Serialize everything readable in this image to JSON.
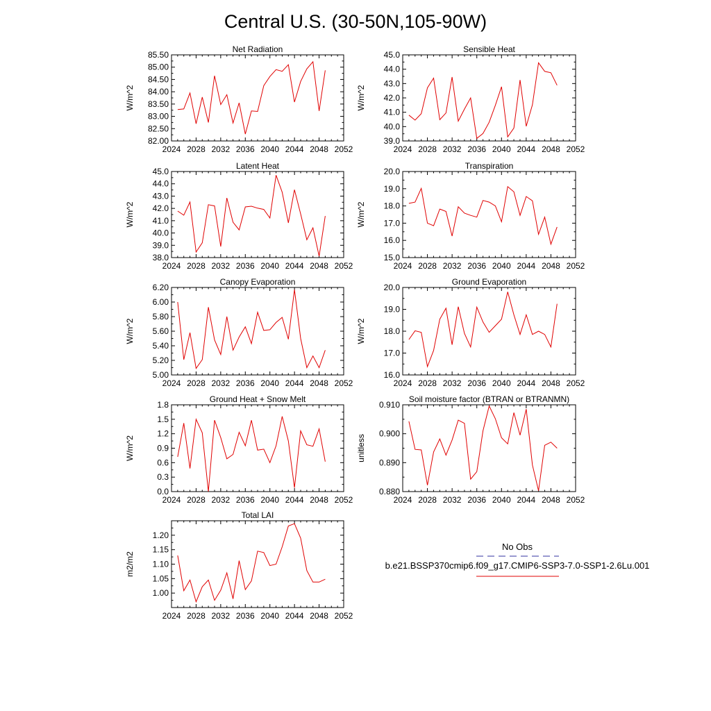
{
  "title": "Central U.S. (30-50N,105-90W)",
  "colors": {
    "model": "#e00000",
    "obs": "#3030a0",
    "frame": "#000000"
  },
  "legend": {
    "obs_label": "No Obs",
    "model_label": "b.e21.BSSP370cmip6.f09_g17.CMIP6-SSP3-7.0-SSP1-2.6Lu.001"
  },
  "chart_data": [
    {
      "type": "line",
      "title": "Net Radiation",
      "ylabel": "W/m^2",
      "xlim": [
        2024,
        2052
      ],
      "ylim": [
        82.0,
        85.5
      ],
      "xticks": [
        "2024",
        "2028",
        "2032",
        "2036",
        "2040",
        "2044",
        "2048",
        "2052"
      ],
      "yticks": [
        "82.00",
        "82.50",
        "83.00",
        "83.50",
        "84.00",
        "84.50",
        "85.00",
        "85.50"
      ],
      "x": [
        2025,
        2026,
        2027,
        2028,
        2029,
        2030,
        2031,
        2032,
        2033,
        2034,
        2035,
        2036,
        2037,
        2038,
        2039,
        2040,
        2041,
        2042,
        2043,
        2044,
        2045,
        2046,
        2047,
        2048,
        2049
      ],
      "values": [
        83.28,
        83.3,
        83.95,
        82.7,
        83.78,
        82.75,
        84.65,
        83.48,
        83.88,
        82.73,
        83.55,
        82.28,
        83.22,
        83.2,
        84.25,
        84.62,
        84.9,
        84.83,
        85.1,
        83.58,
        84.42,
        84.93,
        85.22,
        83.22,
        84.87
      ]
    },
    {
      "type": "line",
      "title": "Sensible Heat",
      "ylabel": "W/m^2",
      "xlim": [
        2024,
        2052
      ],
      "ylim": [
        39.0,
        45.0
      ],
      "xticks": [
        "2024",
        "2028",
        "2032",
        "2036",
        "2040",
        "2044",
        "2048",
        "2052"
      ],
      "yticks": [
        "39.0",
        "40.0",
        "41.0",
        "42.0",
        "43.0",
        "44.0",
        "45.0"
      ],
      "x": [
        2025,
        2026,
        2027,
        2028,
        2029,
        2030,
        2031,
        2032,
        2033,
        2034,
        2035,
        2036,
        2037,
        2038,
        2039,
        2040,
        2041,
        2042,
        2043,
        2044,
        2045,
        2046,
        2047,
        2048,
        2049
      ],
      "values": [
        40.8,
        40.45,
        40.9,
        42.7,
        43.38,
        40.48,
        40.95,
        43.45,
        40.38,
        41.22,
        42.0,
        39.18,
        39.52,
        40.3,
        41.48,
        42.78,
        39.28,
        39.9,
        43.25,
        40.02,
        41.52,
        44.45,
        43.85,
        43.75,
        42.88
      ]
    },
    {
      "type": "line",
      "title": "Latent Heat",
      "ylabel": "W/m^2",
      "xlim": [
        2024,
        2052
      ],
      "ylim": [
        38.0,
        45.0
      ],
      "xticks": [
        "2024",
        "2028",
        "2032",
        "2036",
        "2040",
        "2044",
        "2048",
        "2052"
      ],
      "yticks": [
        "38.0",
        "39.0",
        "40.0",
        "41.0",
        "42.0",
        "43.0",
        "44.0",
        "45.0"
      ],
      "x": [
        2025,
        2026,
        2027,
        2028,
        2029,
        2030,
        2031,
        2032,
        2033,
        2034,
        2035,
        2036,
        2037,
        2038,
        2039,
        2040,
        2041,
        2042,
        2043,
        2044,
        2045,
        2046,
        2047,
        2048,
        2049
      ],
      "values": [
        41.78,
        41.45,
        42.52,
        38.45,
        39.2,
        42.3,
        42.2,
        38.9,
        42.85,
        40.88,
        40.25,
        42.12,
        42.18,
        42.02,
        41.92,
        41.22,
        44.7,
        43.32,
        40.82,
        43.52,
        41.55,
        39.45,
        40.42,
        38.12,
        41.38
      ]
    },
    {
      "type": "line",
      "title": "Transpiration",
      "ylabel": "W/m^2",
      "xlim": [
        2024,
        2052
      ],
      "ylim": [
        15.0,
        20.0
      ],
      "xticks": [
        "2024",
        "2028",
        "2032",
        "2036",
        "2040",
        "2044",
        "2048",
        "2052"
      ],
      "yticks": [
        "15.0",
        "16.0",
        "17.0",
        "18.0",
        "19.0",
        "20.0"
      ],
      "x": [
        2025,
        2026,
        2027,
        2028,
        2029,
        2030,
        2031,
        2032,
        2033,
        2034,
        2035,
        2036,
        2037,
        2038,
        2039,
        2040,
        2041,
        2042,
        2043,
        2044,
        2045,
        2046,
        2047,
        2048,
        2049
      ],
      "values": [
        18.15,
        18.22,
        19.02,
        17.0,
        16.85,
        17.82,
        17.68,
        16.25,
        17.95,
        17.58,
        17.45,
        17.35,
        18.32,
        18.22,
        18.0,
        17.08,
        19.12,
        18.82,
        17.45,
        18.55,
        18.3,
        16.35,
        17.35,
        15.78,
        16.78
      ]
    },
    {
      "type": "line",
      "title": "Canopy Evaporation",
      "ylabel": "W/m^2",
      "xlim": [
        2024,
        2052
      ],
      "ylim": [
        5.0,
        6.2
      ],
      "xticks": [
        "2024",
        "2028",
        "2032",
        "2036",
        "2040",
        "2044",
        "2048",
        "2052"
      ],
      "yticks": [
        "5.00",
        "5.20",
        "5.40",
        "5.60",
        "5.80",
        "6.00",
        "6.20"
      ],
      "x": [
        2025,
        2026,
        2027,
        2028,
        2029,
        2030,
        2031,
        2032,
        2033,
        2034,
        2035,
        2036,
        2037,
        2038,
        2039,
        2040,
        2041,
        2042,
        2043,
        2044,
        2045,
        2046,
        2047,
        2048,
        2049
      ],
      "values": [
        6.0,
        5.21,
        5.58,
        5.09,
        5.21,
        5.93,
        5.48,
        5.28,
        5.8,
        5.34,
        5.52,
        5.66,
        5.43,
        5.86,
        5.61,
        5.62,
        5.72,
        5.79,
        5.49,
        6.17,
        5.5,
        5.1,
        5.26,
        5.1,
        5.34
      ]
    },
    {
      "type": "line",
      "title": "Ground Evaporation",
      "ylabel": "W/m^2",
      "xlim": [
        2024,
        2052
      ],
      "ylim": [
        16.0,
        20.0
      ],
      "xticks": [
        "2024",
        "2028",
        "2032",
        "2036",
        "2040",
        "2044",
        "2048",
        "2052"
      ],
      "yticks": [
        "16.0",
        "17.0",
        "18.0",
        "19.0",
        "20.0"
      ],
      "x": [
        2025,
        2026,
        2027,
        2028,
        2029,
        2030,
        2031,
        2032,
        2033,
        2034,
        2035,
        2036,
        2037,
        2038,
        2039,
        2040,
        2041,
        2042,
        2043,
        2044,
        2045,
        2046,
        2047,
        2048,
        2049
      ],
      "values": [
        17.62,
        18.02,
        17.95,
        16.38,
        17.12,
        18.55,
        19.05,
        17.38,
        19.12,
        17.9,
        17.28,
        19.1,
        18.42,
        17.95,
        18.25,
        18.55,
        19.8,
        18.75,
        17.85,
        18.75,
        17.85,
        18.0,
        17.85,
        17.28,
        19.25
      ]
    },
    {
      "type": "line",
      "title": "Ground Heat + Snow Melt",
      "ylabel": "W/m^2",
      "xlim": [
        2024,
        2052
      ],
      "ylim": [
        0.0,
        1.8
      ],
      "xticks": [
        "2024",
        "2028",
        "2032",
        "2036",
        "2040",
        "2044",
        "2048",
        "2052"
      ],
      "yticks": [
        "0.0",
        "0.3",
        "0.6",
        "0.9",
        "1.2",
        "1.5",
        "1.8"
      ],
      "x": [
        2025,
        2026,
        2027,
        2028,
        2029,
        2030,
        2031,
        2032,
        2033,
        2034,
        2035,
        2036,
        2037,
        2038,
        2039,
        2040,
        2041,
        2042,
        2043,
        2044,
        2045,
        2046,
        2047,
        2048,
        2049
      ],
      "values": [
        0.72,
        1.42,
        0.48,
        1.5,
        1.22,
        0.0,
        1.48,
        1.12,
        0.68,
        0.77,
        1.23,
        0.95,
        1.48,
        0.86,
        0.88,
        0.6,
        0.95,
        1.56,
        1.05,
        0.08,
        1.26,
        0.97,
        0.94,
        1.3,
        0.62
      ]
    },
    {
      "type": "line",
      "title": "Soil moisture factor (BTRAN or BTRANMN)",
      "ylabel": "unitless",
      "xlim": [
        2024,
        2052
      ],
      "ylim": [
        0.88,
        0.91
      ],
      "xticks": [
        "2024",
        "2028",
        "2032",
        "2036",
        "2040",
        "2044",
        "2048",
        "2052"
      ],
      "yticks": [
        "0.880",
        "0.890",
        "0.900",
        "0.910"
      ],
      "x": [
        2025,
        2026,
        2027,
        2028,
        2029,
        2030,
        2031,
        2032,
        2033,
        2034,
        2035,
        2036,
        2037,
        2038,
        2039,
        2040,
        2041,
        2042,
        2043,
        2044,
        2045,
        2046,
        2047,
        2048,
        2049
      ],
      "values": [
        0.9043,
        0.8946,
        0.8944,
        0.8822,
        0.8937,
        0.8982,
        0.8926,
        0.8978,
        0.9047,
        0.9036,
        0.8843,
        0.8869,
        0.901,
        0.9096,
        0.9052,
        0.8986,
        0.8965,
        0.9073,
        0.8995,
        0.9085,
        0.8892,
        0.8803,
        0.896,
        0.8971,
        0.895
      ]
    },
    {
      "type": "line",
      "title": "Total LAI",
      "ylabel": "m2/m2",
      "xlim": [
        2024,
        2052
      ],
      "ylim": [
        0.95,
        1.25
      ],
      "xticks": [
        "2024",
        "2028",
        "2032",
        "2036",
        "2040",
        "2044",
        "2048",
        "2052"
      ],
      "yticks": [
        "1.00",
        "1.05",
        "1.10",
        "1.15",
        "1.20"
      ],
      "x": [
        2025,
        2026,
        2027,
        2028,
        2029,
        2030,
        2031,
        2032,
        2033,
        2034,
        2035,
        2036,
        2037,
        2038,
        2039,
        2040,
        2041,
        2042,
        2043,
        2044,
        2045,
        2046,
        2047,
        2048,
        2049
      ],
      "values": [
        1.13,
        1.008,
        1.045,
        0.97,
        1.022,
        1.045,
        0.975,
        1.01,
        1.07,
        0.98,
        1.112,
        1.012,
        1.042,
        1.145,
        1.14,
        1.095,
        1.1,
        1.16,
        1.232,
        1.24,
        1.19,
        1.078,
        1.038,
        1.038,
        1.048
      ]
    }
  ]
}
